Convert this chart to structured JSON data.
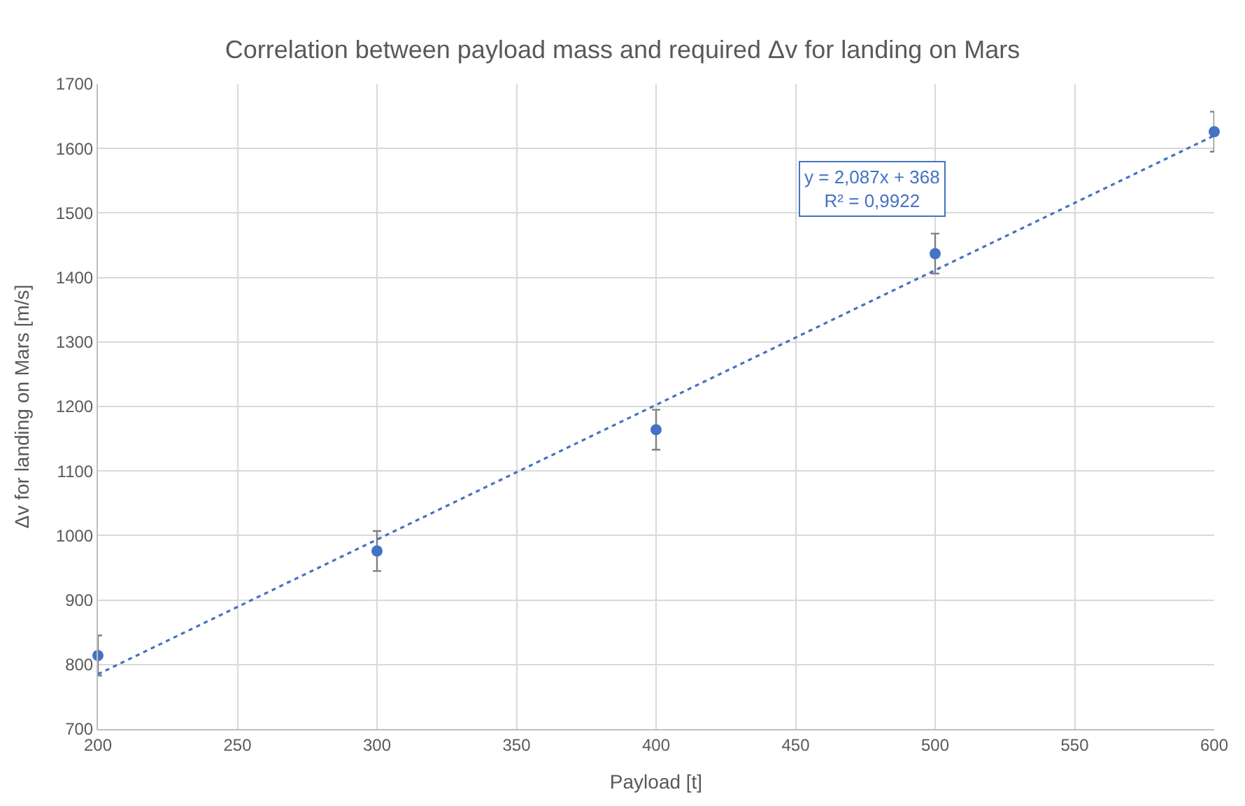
{
  "chart_data": {
    "type": "scatter",
    "title": "Correlation between payload mass and required Δv for landing on Mars",
    "xlabel": "Payload [t]",
    "ylabel": "Δv for landing on Mars [m/s]",
    "x": [
      200,
      300,
      400,
      500,
      600
    ],
    "series": [
      {
        "color": "#4472c4",
        "values": [
          814,
          976,
          1164,
          1437,
          1626
        ],
        "errors": [
          31,
          31,
          31,
          31,
          31
        ],
        "marker": "circle"
      },
      {
        "type": "line",
        "color": "#4472c4",
        "x": [
          200,
          600
        ],
        "values": [
          785,
          1620
        ],
        "line_style": "dotted",
        "marker": "none"
      }
    ],
    "annotations": [
      "y = 2,087x + 368\nR² = 0,9922"
    ],
    "xlim": [
      200,
      600
    ],
    "xticks": [
      200,
      250,
      300,
      350,
      400,
      450,
      500,
      550,
      600
    ],
    "ylim": [
      700,
      1700
    ],
    "yticks": [
      700,
      800,
      900,
      1000,
      1100,
      1200,
      1300,
      1400,
      1500,
      1600,
      1700
    ],
    "grid": true,
    "legend": false
  }
}
